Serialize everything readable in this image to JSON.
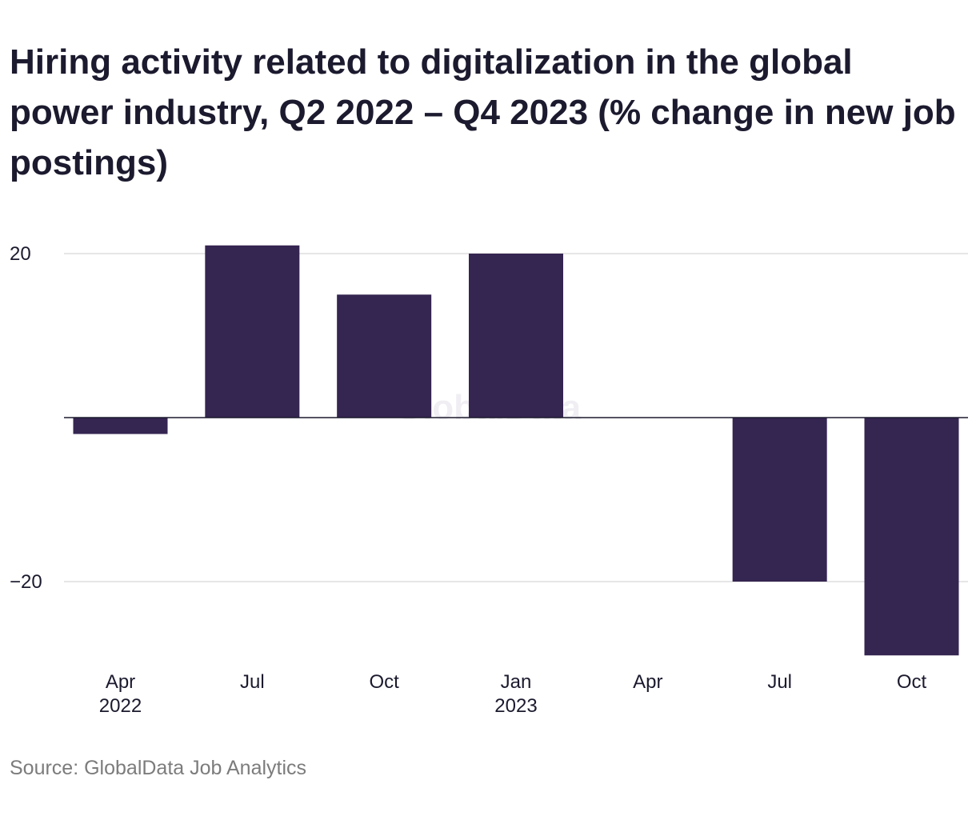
{
  "chart_data": {
    "type": "bar",
    "title": "Hiring activity related to digitalization in the global power industry, Q2 2022 – Q4 2023 (% change in new job postings)",
    "categories": [
      "Apr 2022",
      "Jul 2022",
      "Oct 2022",
      "Jan 2023",
      "Apr 2023",
      "Jul 2023",
      "Oct 2023"
    ],
    "tick_labels": [
      {
        "line1": "Apr",
        "line2": "2022"
      },
      {
        "line1": "Jul",
        "line2": ""
      },
      {
        "line1": "Oct",
        "line2": ""
      },
      {
        "line1": "Jan",
        "line2": "2023"
      },
      {
        "line1": "Apr",
        "line2": ""
      },
      {
        "line1": "Jul",
        "line2": ""
      },
      {
        "line1": "Oct",
        "line2": ""
      }
    ],
    "values": [
      -2,
      21,
      15,
      20,
      0,
      -20,
      -29
    ],
    "ylim": [
      -29,
      21
    ],
    "yticks": [
      20,
      -20
    ],
    "ytick_labels": [
      "20",
      "−20"
    ],
    "xlabel": "",
    "ylabel": "",
    "grid": true,
    "bar_color": "#352551",
    "source": "Source: GlobalData Job Analytics",
    "watermark": "GlobalData"
  }
}
